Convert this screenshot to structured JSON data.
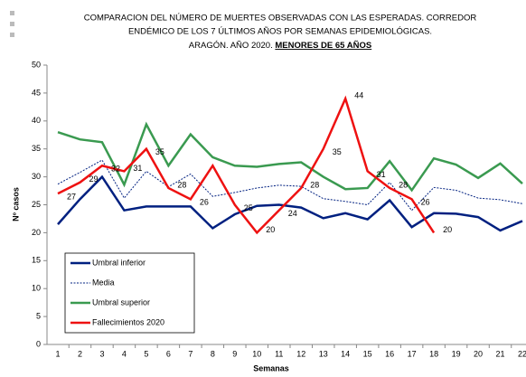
{
  "chart_data": {
    "type": "line",
    "title": [
      "COMPARACION DEL NÚMERO  DE MUERTES OBSERVADAS CON LAS ESPERADAS. CORREDOR",
      "ENDÉMICO DE LOS 7 ÚLTIMOS AÑOS POR SEMANAS EPIDEMIOLÓGICAS.",
      "ARAGÓN. AÑO 2020."
    ],
    "title_emphasis": "MENORES DE 65 AÑOS",
    "x_label": "Semanas",
    "y_label": "Nº casos",
    "categories": [
      "1",
      "2",
      "3",
      "4",
      "5",
      "6",
      "7",
      "8",
      "9",
      "10",
      "11",
      "12",
      "13",
      "14",
      "15",
      "16",
      "17",
      "18",
      "19",
      "20",
      "21",
      "22"
    ],
    "series": [
      {
        "name": "Umbral inferior",
        "color": "#002080",
        "style": "solid",
        "width": 2.5,
        "values": [
          21.5,
          26,
          30,
          24,
          24.7,
          24.7,
          24.7,
          20.8,
          23.3,
          24.8,
          25,
          24.5,
          22.6,
          23.5,
          22.4,
          25.8,
          21,
          23.5,
          23.4,
          22.8,
          20.4,
          22.1
        ]
      },
      {
        "name": "Media",
        "color": "#002080",
        "style": "dotted",
        "width": 1,
        "values": [
          28.7,
          30.8,
          33,
          26.2,
          31,
          28.2,
          30.5,
          26.5,
          27.2,
          28,
          28.5,
          28.3,
          26.1,
          25.6,
          25,
          29,
          24,
          28.1,
          27.6,
          26.2,
          25.9,
          25.2
        ]
      },
      {
        "name": "Umbral superior",
        "color": "#3a9a50",
        "style": "solid",
        "width": 2.5,
        "values": [
          38,
          36.7,
          36.2,
          28.6,
          39.4,
          32,
          37.6,
          33.5,
          32,
          31.8,
          32.3,
          32.6,
          30,
          27.8,
          28,
          32.8,
          27.6,
          33.3,
          32.2,
          29.8,
          32.4,
          28.8
        ]
      },
      {
        "name": "Fallecimientos 2020",
        "color": "#ee1111",
        "style": "solid",
        "width": 2.5,
        "values": [
          27,
          29,
          32,
          31,
          35,
          28,
          26,
          32,
          25,
          20,
          24,
          28,
          35,
          44,
          31,
          28,
          26,
          20,
          null,
          null,
          null,
          null
        ],
        "value_labels": [
          "27",
          "29",
          "32",
          "31",
          "35",
          "28",
          "26",
          null,
          "25",
          "20",
          "24",
          "28",
          "35",
          "44",
          "31",
          "28",
          "26",
          "20",
          null,
          null,
          null,
          null
        ]
      }
    ],
    "ylim": [
      0,
      50
    ],
    "yticks": [
      0,
      5,
      10,
      15,
      20,
      25,
      30,
      35,
      40,
      45,
      50
    ],
    "legend": "lower left"
  }
}
